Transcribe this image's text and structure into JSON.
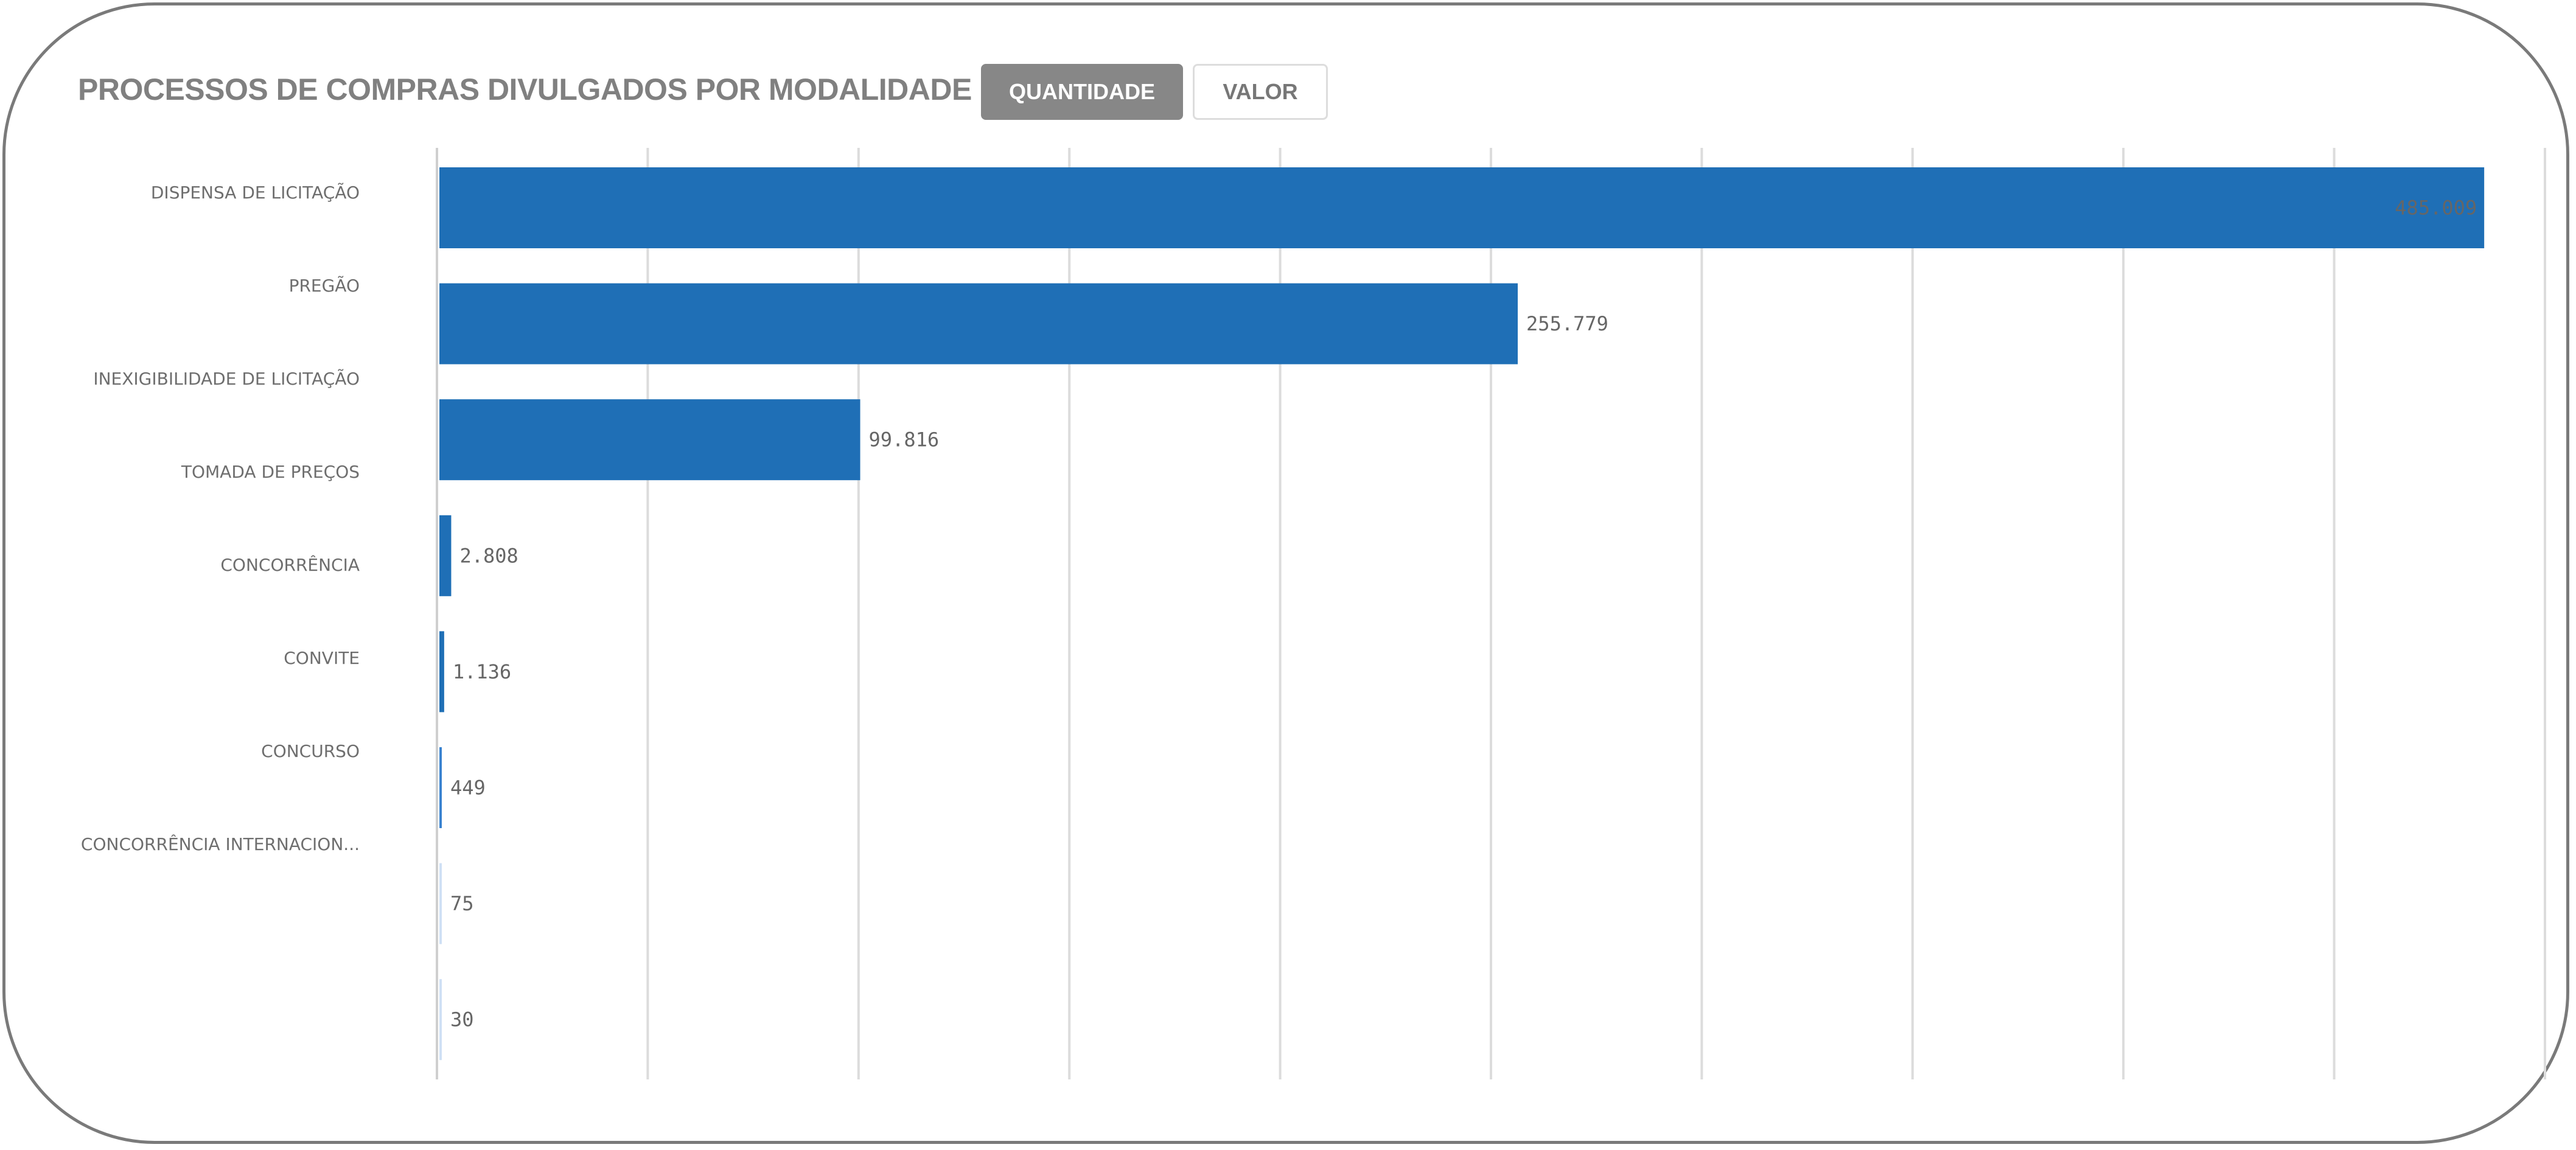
{
  "header": {
    "title": "PROCESSOS DE COMPRAS DIVULGADOS POR MODALIDADE",
    "buttons": [
      {
        "label": "QUANTIDADE",
        "active": true
      },
      {
        "label": "VALOR",
        "active": false
      }
    ]
  },
  "chart_data": {
    "type": "bar",
    "orientation": "horizontal",
    "title": "PROCESSOS DE COMPRAS DIVULGADOS POR MODALIDADE",
    "categories": [
      "DISPENSA DE LICITAÇÃO",
      "PREGÃO",
      "INEXIGIBILIDADE DE LICITAÇÃO",
      "TOMADA DE PREÇOS",
      "CONCORRÊNCIA",
      "CONVITE",
      "CONCURSO",
      "CONCORRÊNCIA INTERNACION..."
    ],
    "values": [
      485009,
      255779,
      99816,
      2808,
      1136,
      449,
      75,
      30
    ],
    "value_labels": [
      "485.009",
      "255.779",
      "99.816",
      "2.808",
      "1.136",
      "449",
      "75",
      "30"
    ],
    "xlim": [
      0,
      500000
    ],
    "grid": true,
    "bar_colors": [
      "#1f6fb6",
      "#1f6fb6",
      "#1f6fb6",
      "#1f6fb6",
      "#1f6fb6",
      "#3a83d0",
      "#cfe0f5",
      "#cfe0f5"
    ],
    "xlabel": "",
    "ylabel": ""
  }
}
